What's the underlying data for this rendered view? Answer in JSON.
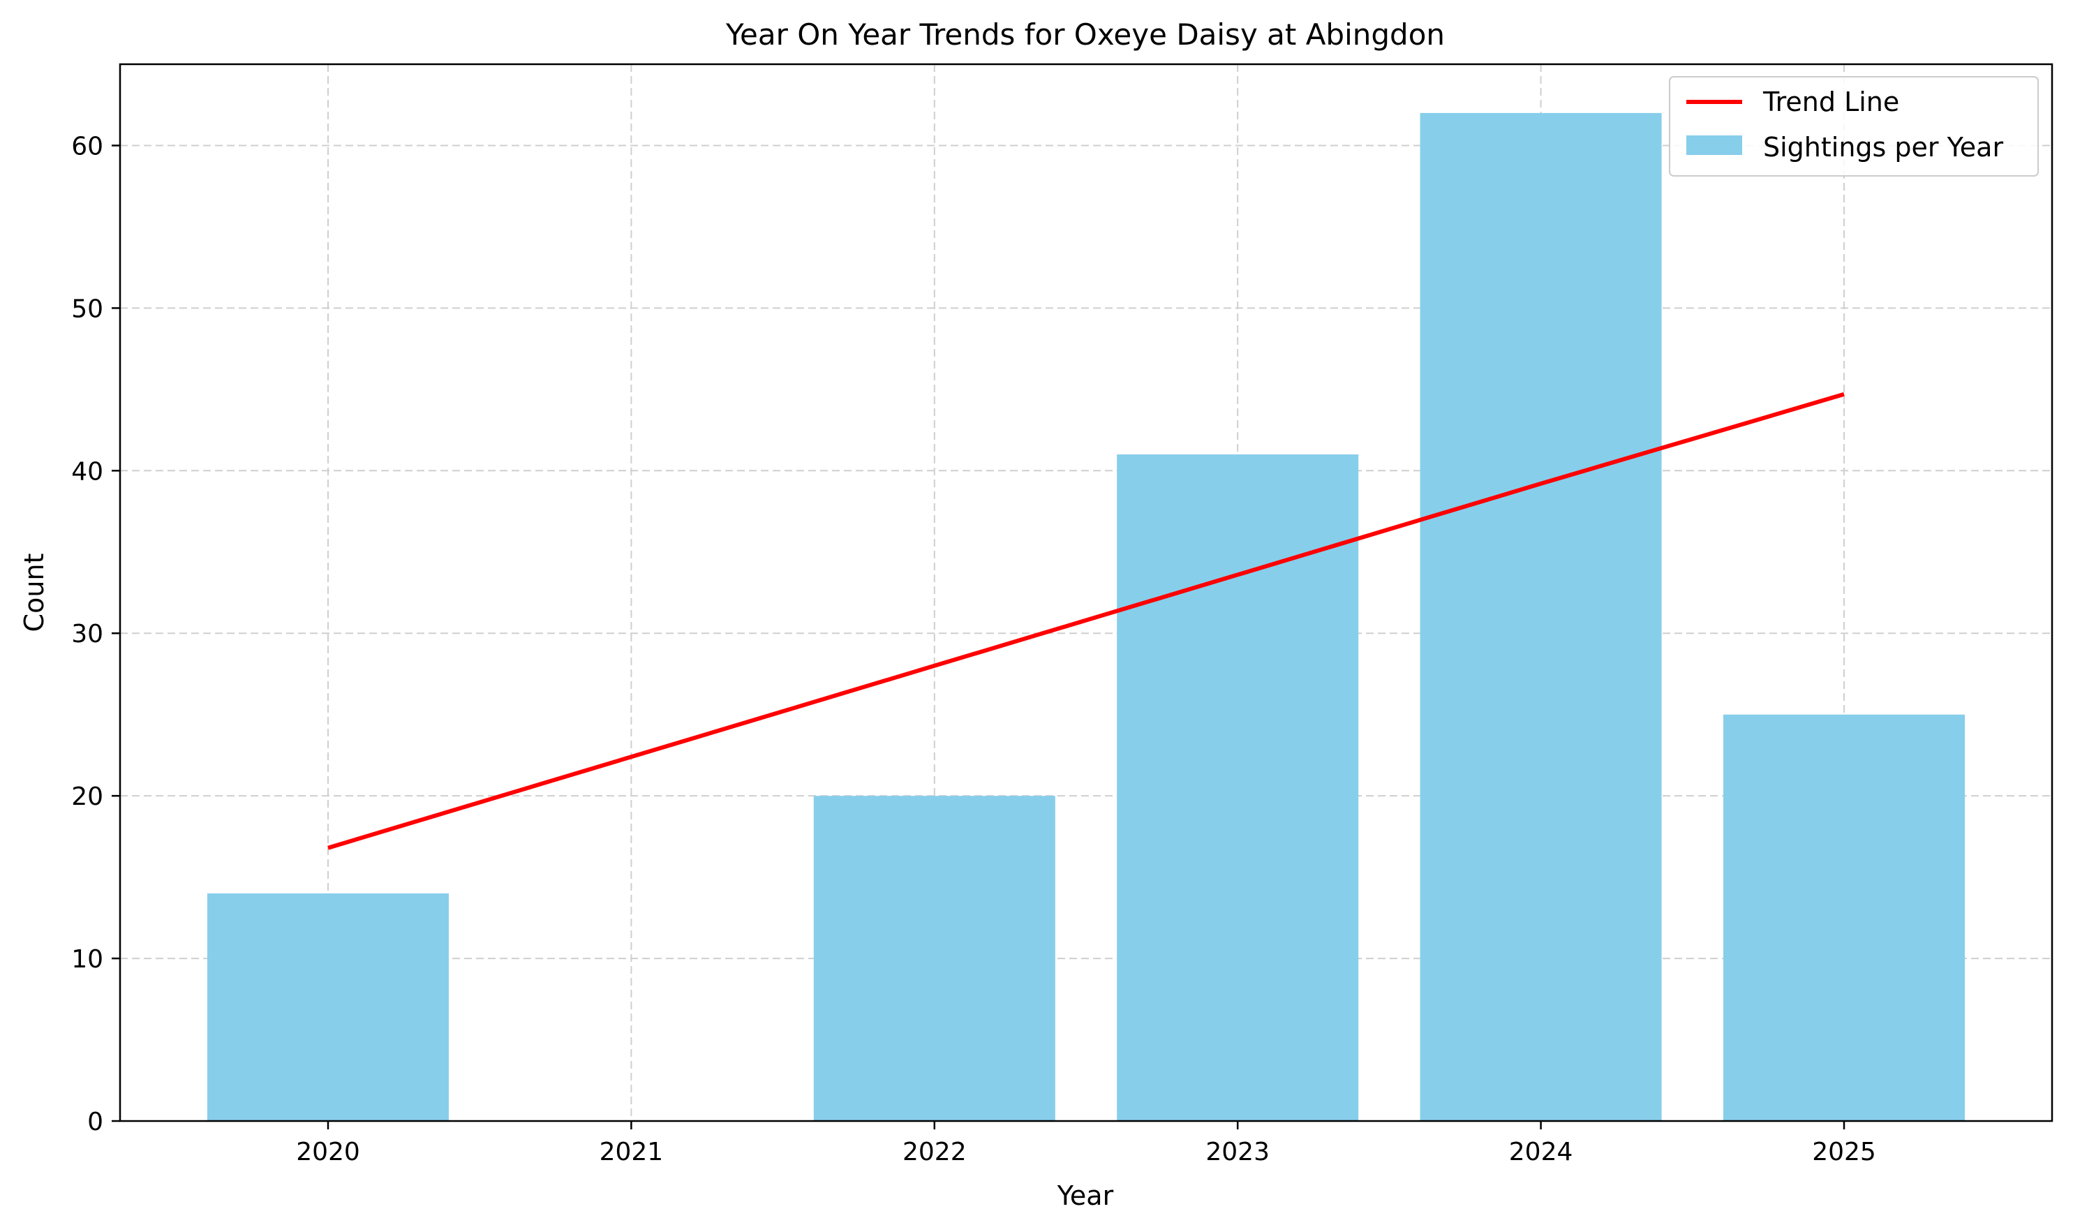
{
  "chart_data": {
    "type": "bar",
    "title": "Year On Year Trends for Oxeye Daisy at Abingdon",
    "xlabel": "Year",
    "ylabel": "Count",
    "categories": [
      "2020",
      "2021",
      "2022",
      "2023",
      "2024",
      "2025"
    ],
    "ylim": [
      0,
      65
    ],
    "yticks": [
      0,
      10,
      20,
      30,
      40,
      50,
      60
    ],
    "grid": true,
    "legend_position": "top-right",
    "series": [
      {
        "name": "Sightings per Year",
        "type": "bar",
        "color": "#87CEEB",
        "values": [
          14,
          0,
          20,
          41,
          62,
          25
        ]
      },
      {
        "name": "Trend Line",
        "type": "line",
        "color": "#ff0000",
        "values": [
          16.8,
          22.4,
          28.0,
          33.6,
          39.2,
          44.7
        ]
      }
    ]
  }
}
